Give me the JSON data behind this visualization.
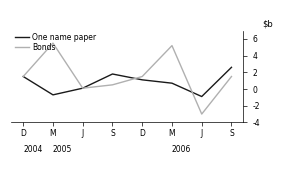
{
  "x_positions": [
    0,
    1,
    2,
    3,
    4,
    5,
    6,
    7
  ],
  "x_labels": [
    "D",
    "M",
    "J",
    "S",
    "D",
    "M",
    "J",
    "S"
  ],
  "one_name_paper": [
    1.5,
    -0.7,
    0.1,
    1.8,
    1.1,
    0.7,
    -0.9,
    2.6
  ],
  "bonds": [
    1.5,
    5.5,
    0.1,
    0.5,
    1.5,
    5.2,
    -3.0,
    1.5
  ],
  "one_name_paper_color": "#1a1a1a",
  "bonds_color": "#b0b0b0",
  "ylim": [
    -4,
    7
  ],
  "yticks": [
    -4,
    -2,
    0,
    2,
    4,
    6
  ],
  "legend_one_name": "One name paper",
  "legend_bonds": "Bonds",
  "line_width": 1.0,
  "year_labels": [
    [
      "2004",
      0
    ],
    [
      "2005",
      1
    ],
    [
      "2006",
      5
    ]
  ]
}
